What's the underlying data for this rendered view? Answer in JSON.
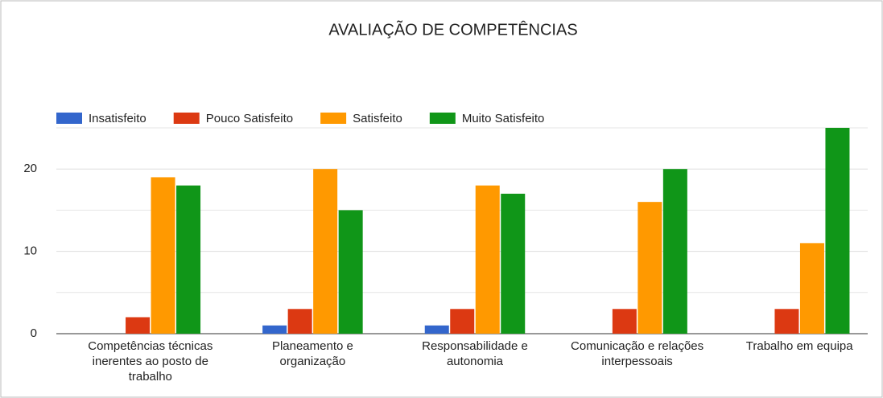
{
  "chart_data": {
    "type": "bar",
    "title": "AVALIAÇÃO DE COMPETÊNCIAS",
    "categories": [
      "Competências técnicas inerentes ao posto de trabalho",
      "Planeamento e organização",
      "Responsabilidade e autonomia",
      "Comunicação e relações interpessoais",
      "Trabalho em equipa"
    ],
    "series": [
      {
        "name": "Insatisfeito",
        "color": "#3366cc",
        "values": [
          0,
          1,
          1,
          0,
          0
        ]
      },
      {
        "name": "Pouco Satisfeito",
        "color": "#dc3912",
        "values": [
          2,
          3,
          3,
          3,
          3
        ]
      },
      {
        "name": "Satisfeito",
        "color": "#ff9900",
        "values": [
          19,
          20,
          18,
          16,
          11
        ]
      },
      {
        "name": "Muito Satisfeito",
        "color": "#109618",
        "values": [
          18,
          15,
          17,
          20,
          25
        ]
      }
    ],
    "ylim": [
      0,
      25
    ],
    "yticks": [
      0,
      10,
      20
    ],
    "minor_yticks": [
      5,
      15,
      25
    ],
    "grid": true,
    "legend": "top"
  }
}
